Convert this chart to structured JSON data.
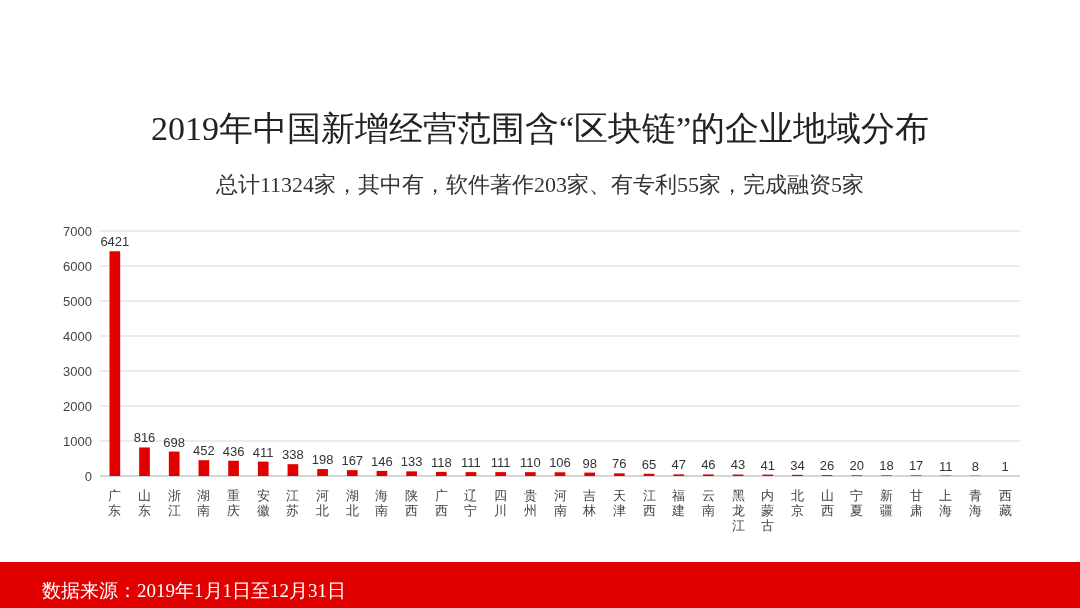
{
  "chart_data": {
    "type": "bar",
    "title": "2019年中国新增经营范围含“区块链”的企业地域分布",
    "subtitle": "总计11324家，其中有，软件著作203家、有专利55家，完成融资5家",
    "categories": [
      "广东",
      "山东",
      "浙江",
      "湖南",
      "重庆",
      "安徽",
      "江苏",
      "河北",
      "湖北",
      "海南",
      "陕西",
      "广西",
      "辽宁",
      "四川",
      "贵州",
      "河南",
      "吉林",
      "天津",
      "江西",
      "福建",
      "云南",
      "黑龙江",
      "内蒙古",
      "北京",
      "山西",
      "宁夏",
      "新疆",
      "甘肃",
      "上海",
      "青海",
      "西藏"
    ],
    "values": [
      6421,
      816,
      698,
      452,
      436,
      411,
      338,
      198,
      167,
      146,
      133,
      118,
      111,
      111,
      110,
      106,
      98,
      76,
      65,
      47,
      46,
      43,
      41,
      34,
      26,
      20,
      18,
      17,
      11,
      8,
      1
    ],
    "color": "#e00000",
    "ylim": [
      0,
      7000
    ],
    "yticks": [
      0,
      1000,
      2000,
      3000,
      4000,
      5000,
      6000,
      7000
    ],
    "grid": "y",
    "data_labels": true,
    "annotations": [
      "数据来源：2019年1月1日至12月31日"
    ]
  }
}
